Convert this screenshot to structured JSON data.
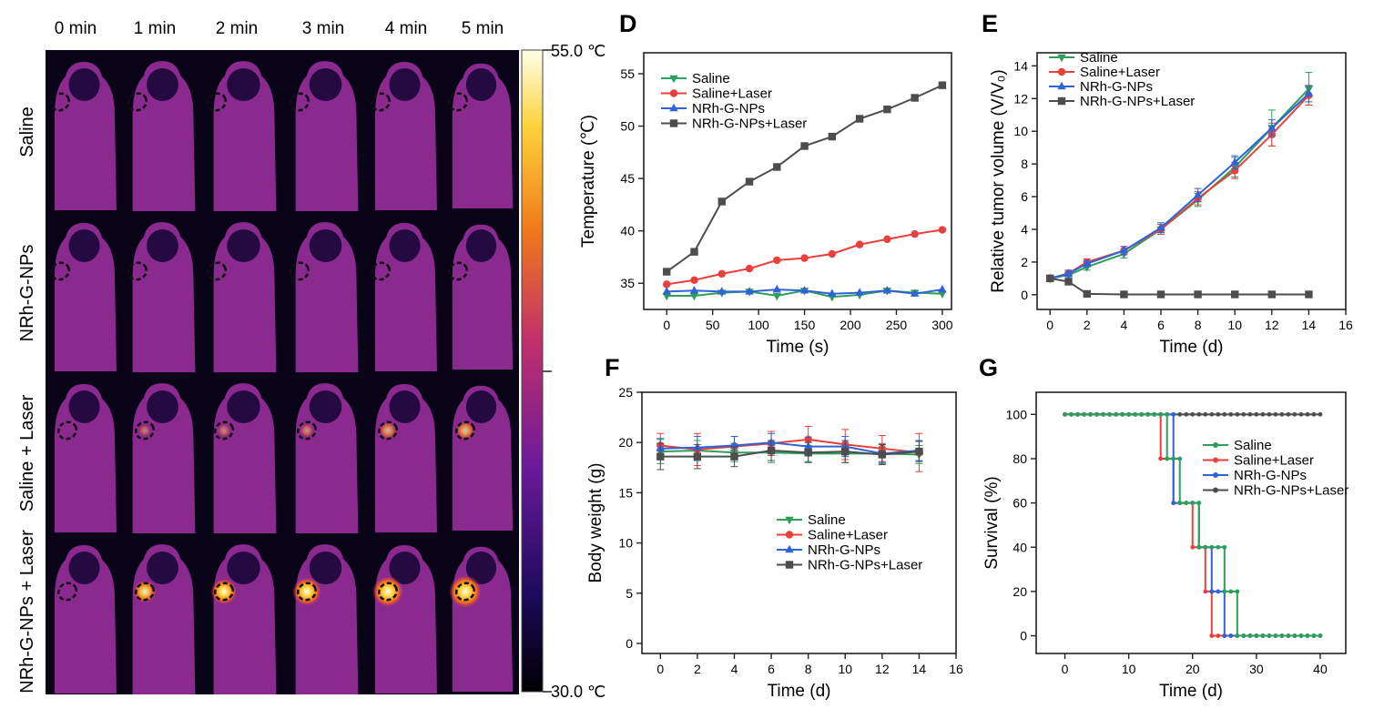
{
  "thermal": {
    "time_labels": [
      "0 min",
      "1 min",
      "2 min",
      "3 min",
      "4 min",
      "5 min"
    ],
    "row_labels": [
      "Saline",
      "NRh-G-NPs",
      "Saline + Laser",
      "NRh-G-NPs + Laser"
    ],
    "scale_max": "55.0 ℃",
    "scale_min": "30.0 ℃",
    "hotspot_intensity": [
      [
        0,
        0,
        0,
        0,
        0,
        0
      ],
      [
        0,
        0,
        0,
        0,
        0,
        0
      ],
      [
        0,
        0.05,
        0.08,
        0.12,
        0.28,
        0.35
      ],
      [
        0,
        0.55,
        0.7,
        0.82,
        0.92,
        1.0
      ]
    ],
    "colors": {
      "background": "#0a0418",
      "body": "#8a2a8e",
      "body_hot": "#ffd0ff"
    }
  },
  "chart_data": [
    {
      "panel": "D",
      "type": "line",
      "xlabel": "Time (s)",
      "ylabel": "Temperature (℃)",
      "xlim": [
        -25,
        310
      ],
      "ylim": [
        32.5,
        57
      ],
      "xticks": [
        0,
        50,
        100,
        150,
        200,
        250,
        300
      ],
      "yticks": [
        35,
        40,
        45,
        50,
        55
      ],
      "legend_position": "top-left",
      "x": [
        0,
        30,
        60,
        90,
        120,
        150,
        180,
        210,
        240,
        270,
        300
      ],
      "series": [
        {
          "name": "Saline",
          "color": "#2e9e5b",
          "marker": "triangle-down",
          "values": [
            33.8,
            33.8,
            34.1,
            34.2,
            33.8,
            34.3,
            33.7,
            33.9,
            34.3,
            34.1,
            34.0
          ]
        },
        {
          "name": "Saline+Laser",
          "color": "#e8413c",
          "marker": "circle",
          "values": [
            34.9,
            35.3,
            35.9,
            36.4,
            37.2,
            37.4,
            37.8,
            38.7,
            39.2,
            39.7,
            40.1
          ]
        },
        {
          "name": "NRh-G-NPs",
          "color": "#2f63d6",
          "marker": "triangle-up",
          "values": [
            34.2,
            34.3,
            34.2,
            34.2,
            34.4,
            34.3,
            34.0,
            34.1,
            34.3,
            34.0,
            34.4
          ]
        },
        {
          "name": "NRh-G-NPs+Laser",
          "color": "#4d4d4d",
          "marker": "square",
          "values": [
            36.1,
            38.0,
            42.8,
            44.7,
            46.1,
            48.1,
            49.0,
            50.7,
            51.6,
            52.7,
            53.9
          ]
        }
      ]
    },
    {
      "panel": "E",
      "type": "line",
      "xlabel": "Time (d)",
      "ylabel": "Relative tumor volume (V/V₀)",
      "xlim": [
        -0.7,
        16
      ],
      "ylim": [
        -0.9,
        14.8
      ],
      "xticks": [
        0,
        2,
        4,
        6,
        8,
        10,
        12,
        14,
        16
      ],
      "yticks": [
        0,
        2,
        4,
        6,
        8,
        10,
        12,
        14
      ],
      "legend_position": "top-left",
      "x": [
        0,
        1,
        2,
        4,
        6,
        8,
        10,
        12,
        14
      ],
      "series": [
        {
          "name": "Saline",
          "color": "#2e9e5b",
          "marker": "triangle-down",
          "values": [
            1.0,
            1.2,
            1.7,
            2.5,
            4.0,
            5.8,
            7.8,
            10.2,
            12.6
          ],
          "error": [
            0.1,
            0.2,
            0.2,
            0.25,
            0.3,
            0.4,
            0.6,
            1.1,
            1.0
          ]
        },
        {
          "name": "Saline+Laser",
          "color": "#e8413c",
          "marker": "circle",
          "values": [
            1.0,
            1.3,
            2.0,
            2.7,
            4.0,
            5.9,
            7.6,
            9.8,
            12.2
          ],
          "error": [
            0.1,
            0.2,
            0.2,
            0.25,
            0.3,
            0.4,
            0.5,
            0.7,
            0.6
          ]
        },
        {
          "name": "NRh-G-NPs",
          "color": "#2f63d6",
          "marker": "triangle-up",
          "values": [
            1.0,
            1.3,
            1.9,
            2.7,
            4.1,
            6.1,
            8.1,
            10.2,
            12.3
          ],
          "error": [
            0.1,
            0.2,
            0.2,
            0.25,
            0.3,
            0.4,
            0.4,
            0.5,
            0.5
          ]
        },
        {
          "name": "NRh-G-NPs+Laser",
          "color": "#4d4d4d",
          "marker": "square",
          "values": [
            1.0,
            0.8,
            0.05,
            0.02,
            0.02,
            0.02,
            0.02,
            0.02,
            0.02
          ],
          "error": [
            0,
            0,
            0,
            0,
            0,
            0,
            0,
            0,
            0
          ]
        }
      ]
    },
    {
      "panel": "F",
      "type": "line",
      "xlabel": "Time (d)",
      "ylabel": "Body weight (g)",
      "xlim": [
        -1,
        16
      ],
      "ylim": [
        -1,
        25
      ],
      "xticks": [
        0,
        2,
        4,
        6,
        8,
        10,
        12,
        14,
        16
      ],
      "yticks": [
        0,
        5,
        10,
        15,
        20,
        25
      ],
      "legend_position": "center",
      "x": [
        0,
        2,
        4,
        6,
        8,
        10,
        12,
        14
      ],
      "series": [
        {
          "name": "Saline",
          "color": "#2e9e5b",
          "marker": "triangle-down",
          "values": [
            19.1,
            19.2,
            19.0,
            19.0,
            18.9,
            18.9,
            18.9,
            18.8
          ],
          "error": [
            1.2,
            1.0,
            0.9,
            1.0,
            0.8,
            0.9,
            1.0,
            0.9
          ]
        },
        {
          "name": "Saline+Laser",
          "color": "#e8413c",
          "marker": "circle",
          "values": [
            19.7,
            19.3,
            19.6,
            19.9,
            20.3,
            19.8,
            19.4,
            19.0
          ],
          "error": [
            1.2,
            1.6,
            1.0,
            1.2,
            1.3,
            1.5,
            1.3,
            1.9
          ]
        },
        {
          "name": "NRh-G-NPs",
          "color": "#2f63d6",
          "marker": "triangle-up",
          "values": [
            19.4,
            19.5,
            19.7,
            20.0,
            19.6,
            19.6,
            18.9,
            19.2
          ],
          "error": [
            1.0,
            1.1,
            0.9,
            0.9,
            0.9,
            1.0,
            0.9,
            1.0
          ]
        },
        {
          "name": "NRh-G-NPs+Laser",
          "color": "#4d4d4d",
          "marker": "square",
          "values": [
            18.6,
            18.6,
            18.6,
            19.2,
            19.0,
            19.1,
            18.8,
            19.1
          ],
          "error": [
            1.3,
            1.2,
            1.0,
            1.0,
            1.0,
            1.1,
            1.0,
            1.0
          ]
        }
      ]
    },
    {
      "panel": "G",
      "type": "line",
      "xlabel": "Time (d)",
      "ylabel": "Survival (%)",
      "xlim": [
        -4.5,
        44
      ],
      "ylim": [
        -8,
        110
      ],
      "xticks": [
        0,
        10,
        20,
        30,
        40
      ],
      "yticks": [
        0,
        20,
        40,
        60,
        80,
        100
      ],
      "legend_position": "center-right",
      "step": true,
      "series": [
        {
          "name": "Saline",
          "color": "#2e9e5b",
          "marker": "circle",
          "steps": [
            [
              0,
              100
            ],
            [
              16,
              80
            ],
            [
              18,
              60
            ],
            [
              21,
              40
            ],
            [
              25,
              20
            ],
            [
              27,
              0
            ],
            [
              40,
              0
            ]
          ]
        },
        {
          "name": "Saline+Laser",
          "color": "#e8413c",
          "marker": "circle",
          "steps": [
            [
              0,
              100
            ],
            [
              15,
              80
            ],
            [
              17,
              60
            ],
            [
              20,
              40
            ],
            [
              22,
              20
            ],
            [
              23,
              0
            ],
            [
              40,
              0
            ]
          ]
        },
        {
          "name": "NRh-G-NPs",
          "color": "#2f63d6",
          "marker": "circle",
          "steps": [
            [
              0,
              100
            ],
            [
              17,
              60
            ],
            [
              21,
              40
            ],
            [
              23,
              20
            ],
            [
              25,
              0
            ],
            [
              40,
              0
            ]
          ]
        },
        {
          "name": "NRh-G-NPs+Laser",
          "color": "#4d4d4d",
          "marker": "circle",
          "steps": [
            [
              0,
              100
            ],
            [
              40,
              100
            ]
          ]
        }
      ]
    }
  ],
  "panel_letters": {
    "D": "D",
    "E": "E",
    "F": "F",
    "G": "G"
  }
}
